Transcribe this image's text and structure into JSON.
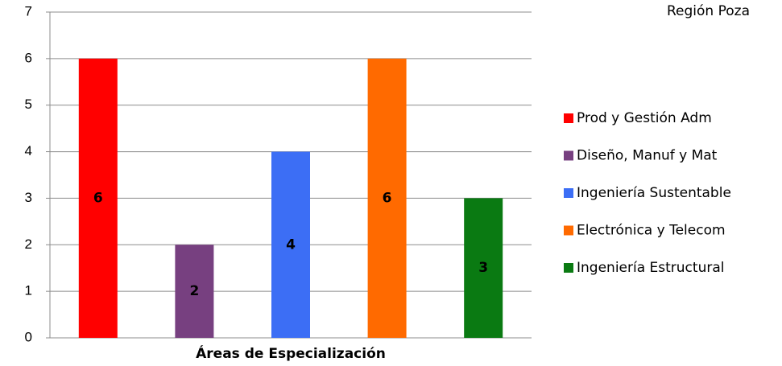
{
  "chart_data": {
    "type": "bar",
    "title": "Región Poza",
    "x_label": "Áreas de Especialización",
    "categories": [
      null
    ],
    "series": [
      {
        "name": "Prod y Gestión Adm",
        "color": "#ff0000",
        "values": [
          6
        ]
      },
      {
        "name": "Diseño, Manuf y Mat",
        "color": "#774080",
        "values": [
          2
        ]
      },
      {
        "name": "Ingeniería Sustentable",
        "color": "#3c6ef5",
        "values": [
          4
        ]
      },
      {
        "name": "Electrónica y Telecom",
        "color": "#ff6a00",
        "values": [
          6
        ]
      },
      {
        "name": "Ingeniería Estructural",
        "color": "#0a7a12",
        "values": [
          3
        ]
      }
    ],
    "ylim": [
      0,
      7
    ],
    "yticks": [
      0,
      1,
      2,
      3,
      4,
      5,
      6,
      7
    ],
    "grid": true,
    "legend": "right"
  }
}
